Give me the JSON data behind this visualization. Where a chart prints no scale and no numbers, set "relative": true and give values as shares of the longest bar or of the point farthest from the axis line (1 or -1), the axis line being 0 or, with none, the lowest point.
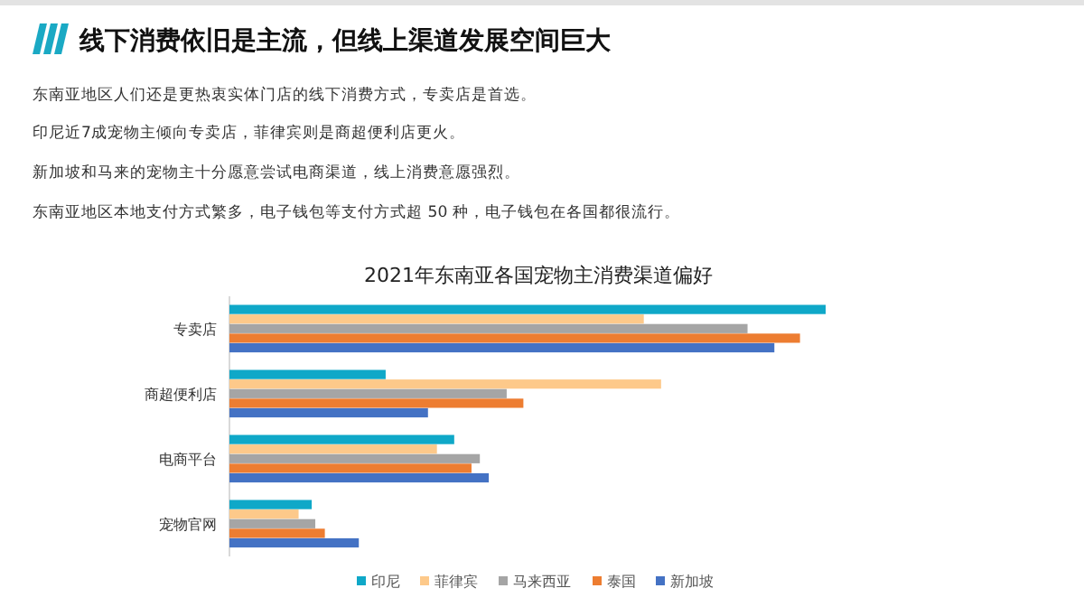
{
  "chart_data": {
    "type": "bar",
    "orientation": "horizontal",
    "relative": true,
    "title": "线下消费依旧是主流，但线上渠道发展空间巨大",
    "subtitle": "2021年东南亚各国宠物主消费渠道偏好",
    "annotations": [
      "东南亚地区人们还是更热衷实体门店的线下消费方式，专卖店是首选。",
      "印尼近7成宠物主倾向专卖店，菲律宾则是商超便利店更火。",
      "新加坡和马来的宠物主十分愿意尝试电商渠道，线上消费意愿强烈。",
      "东南亚地区本地支付方式繁多，电子钱包等支付方式超 50 种，电子钱包在各国都很流行。"
    ],
    "categories": [
      "专卖店",
      "商超便利店",
      "电商平台",
      "宠物官网"
    ],
    "series": [
      {
        "name": "印尼",
        "color": "#0fa8c8",
        "values": [
          1,
          0.262,
          0.377,
          0.138
        ]
      },
      {
        "name": "菲律宾",
        "color": "#fdc98a",
        "values": [
          0.695,
          0.724,
          0.348,
          0.116
        ]
      },
      {
        "name": "马来西亚",
        "color": "#a5a5a5",
        "values": [
          0.869,
          0.465,
          0.42,
          0.144
        ]
      },
      {
        "name": "泰国",
        "color": "#ed7d31",
        "values": [
          0.957,
          0.493,
          0.406,
          0.16
        ]
      },
      {
        "name": "新加坡",
        "color": "#4472c4",
        "values": [
          0.914,
          0.333,
          0.435,
          0.217
        ]
      }
    ],
    "legend": "bottom"
  }
}
